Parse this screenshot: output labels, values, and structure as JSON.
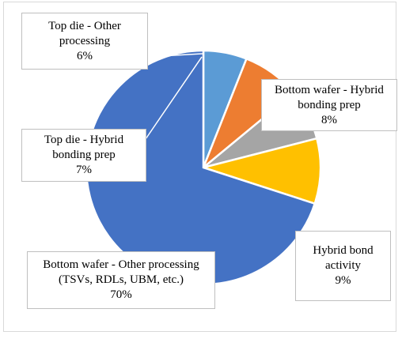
{
  "chart_data": {
    "type": "pie",
    "slices": [
      {
        "name": "Top die - Other processing",
        "value": 6,
        "label": "6%",
        "color": "#5b9bd5"
      },
      {
        "name": "Bottom wafer - Hybrid bonding prep",
        "value": 8,
        "label": "8%",
        "color": "#ed7d31"
      },
      {
        "name": "Top die - Hybrid bonding prep",
        "value": 7,
        "label": "7%",
        "color": "#a5a5a5"
      },
      {
        "name": "Hybrid bond activity",
        "value": 9,
        "label": "9%",
        "color": "#ffc000"
      },
      {
        "name": "Bottom wafer - Other processing (TSVs, RDLs, UBM, etc.)",
        "value": 70,
        "label": "70%",
        "color": "#4472c4"
      }
    ]
  },
  "labels": {
    "top_die_other": {
      "line1": "Top die - Other",
      "line2": "processing",
      "pct": "6%"
    },
    "bottom_wafer_hybrid": {
      "line1": "Bottom wafer - Hybrid",
      "line2": "bonding prep",
      "pct": "8%"
    },
    "top_die_hybrid": {
      "line1": "Top die - Hybrid",
      "line2": "bonding prep",
      "pct": "7%"
    },
    "hybrid_bond": {
      "line1": "Hybrid bond",
      "line2": "activity",
      "pct": "9%"
    },
    "bottom_wafer_other": {
      "line1": "Bottom wafer - Other processing",
      "line2": "(TSVs, RDLs, UBM, etc.)",
      "pct": "70%"
    }
  }
}
